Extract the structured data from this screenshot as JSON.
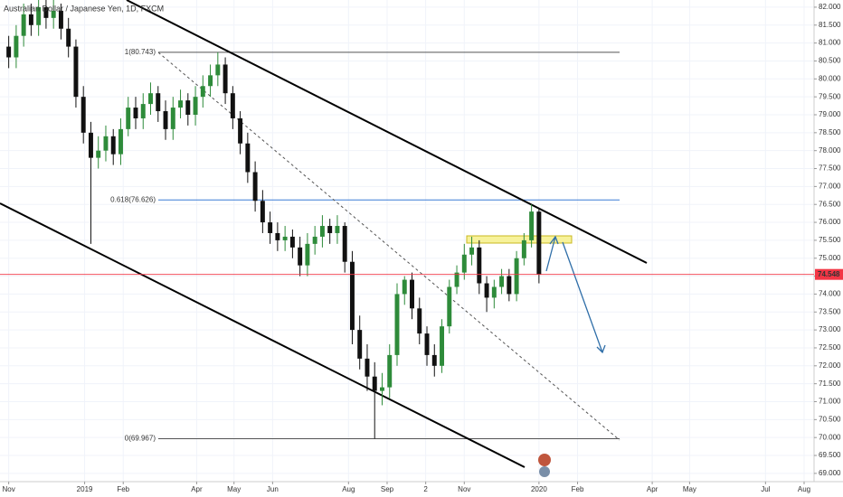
{
  "chart_data": {
    "type": "candlestick",
    "title": "Australian Dollar / Japanese Yen, 1D, FXCM",
    "up_color": "#2e8b3a",
    "down_color": "#111111",
    "x": [
      0,
      6,
      12,
      18,
      24,
      30,
      36,
      42,
      48,
      54,
      60,
      66,
      72,
      78,
      84,
      90,
      96,
      102,
      108,
      114,
      120,
      126,
      132,
      138,
      144,
      150,
      156,
      162,
      168,
      174,
      180,
      186,
      192,
      198,
      204,
      210,
      216,
      222,
      228,
      234,
      240,
      246,
      252,
      258,
      264,
      270,
      276,
      282,
      288,
      294,
      300,
      306,
      312,
      318,
      324,
      330,
      336,
      342,
      348,
      354,
      360,
      366,
      372,
      378,
      384,
      390,
      396,
      402,
      408,
      414,
      420,
      426
    ],
    "open": [
      80.9,
      80.6,
      81.2,
      81.8,
      81.5,
      82.0,
      81.7,
      81.9,
      81.4,
      80.9,
      79.5,
      78.5,
      77.8,
      78.0,
      78.4,
      77.9,
      78.6,
      79.2,
      78.9,
      79.3,
      79.6,
      79.1,
      78.6,
      79.2,
      79.4,
      79.0,
      79.5,
      79.8,
      80.1,
      80.4,
      79.6,
      78.9,
      78.2,
      77.4,
      76.6,
      76.0,
      75.7,
      75.5,
      75.6,
      75.3,
      74.8,
      75.4,
      75.6,
      75.9,
      75.7,
      75.9,
      74.9,
      73.0,
      72.2,
      71.7,
      71.3,
      71.4,
      72.3,
      74.0,
      74.4,
      73.6,
      72.9,
      72.3,
      72.0,
      73.1,
      74.2,
      74.6,
      75.1,
      75.3,
      74.3,
      73.9,
      74.2,
      74.5,
      74.0,
      75.0,
      75.5,
      76.3
    ],
    "high": [
      81.2,
      81.5,
      82.1,
      82.1,
      82.3,
      82.3,
      82.2,
      82.1,
      81.7,
      81.1,
      79.8,
      78.8,
      78.4,
      78.7,
      78.6,
      78.9,
      79.5,
      79.5,
      79.6,
      79.9,
      79.8,
      79.4,
      79.5,
      79.7,
      79.6,
      79.8,
      80.1,
      80.4,
      80.743,
      80.6,
      79.8,
      79.1,
      78.5,
      77.7,
      76.9,
      76.3,
      76.0,
      75.9,
      75.8,
      75.6,
      75.7,
      75.9,
      76.2,
      76.1,
      76.2,
      76.0,
      75.2,
      73.4,
      72.6,
      72.1,
      71.8,
      72.6,
      74.3,
      74.5,
      74.6,
      73.9,
      73.1,
      72.6,
      73.3,
      74.4,
      74.8,
      75.4,
      75.6,
      75.5,
      74.5,
      74.4,
      74.7,
      74.7,
      75.2,
      75.7,
      76.5,
      76.4
    ],
    "low": [
      80.3,
      80.3,
      80.9,
      81.2,
      81.2,
      81.4,
      81.4,
      81.1,
      80.6,
      79.2,
      78.2,
      75.4,
      77.5,
      77.7,
      77.6,
      77.6,
      78.4,
      78.6,
      78.6,
      79.0,
      78.8,
      78.3,
      78.3,
      78.9,
      78.7,
      78.7,
      79.2,
      79.5,
      79.8,
      79.3,
      78.6,
      77.9,
      77.1,
      76.3,
      75.7,
      75.4,
      75.2,
      75.2,
      75.0,
      74.5,
      74.5,
      75.1,
      75.3,
      75.4,
      75.4,
      74.6,
      72.6,
      71.9,
      71.3,
      69.967,
      70.9,
      71.1,
      72.0,
      73.7,
      73.3,
      72.6,
      72.0,
      71.7,
      71.8,
      72.9,
      74.0,
      74.4,
      74.8,
      74.0,
      73.5,
      73.6,
      74.0,
      73.8,
      73.8,
      74.8,
      75.3,
      74.3
    ],
    "close": [
      80.6,
      81.2,
      81.8,
      81.5,
      82.0,
      81.7,
      81.9,
      81.4,
      80.9,
      79.5,
      78.5,
      77.8,
      78.0,
      78.4,
      77.9,
      78.6,
      79.2,
      78.9,
      79.3,
      79.6,
      79.1,
      78.6,
      79.2,
      79.4,
      79.0,
      79.5,
      79.8,
      80.1,
      80.4,
      79.6,
      78.9,
      78.2,
      77.4,
      76.6,
      76.0,
      75.7,
      75.5,
      75.6,
      75.3,
      74.8,
      75.4,
      75.6,
      75.9,
      75.7,
      75.9,
      74.9,
      73.0,
      72.2,
      71.7,
      71.3,
      71.4,
      72.3,
      74.0,
      74.4,
      73.6,
      72.9,
      72.3,
      72.0,
      73.1,
      74.2,
      74.6,
      75.1,
      75.3,
      74.3,
      73.9,
      74.2,
      74.5,
      74.0,
      75.0,
      75.5,
      76.3,
      74.55
    ],
    "xlim": [
      -7,
      647
    ],
    "xticks": [
      {
        "value": 0,
        "label": "Nov"
      },
      {
        "value": 61,
        "label": "2019"
      },
      {
        "value": 92,
        "label": "Feb"
      },
      {
        "value": 151,
        "label": "Apr"
      },
      {
        "value": 181,
        "label": "May"
      },
      {
        "value": 212,
        "label": "Jun"
      },
      {
        "value": 273,
        "label": "Aug"
      },
      {
        "value": 304,
        "label": "Sep"
      },
      {
        "value": 335,
        "label": "2"
      },
      {
        "value": 366,
        "label": "Nov"
      },
      {
        "value": 426,
        "label": "2020"
      },
      {
        "value": 457,
        "label": "Feb"
      },
      {
        "value": 517,
        "label": "Apr"
      },
      {
        "value": 547,
        "label": "May"
      },
      {
        "value": 608,
        "label": "Jul"
      },
      {
        "value": 639,
        "label": "Aug"
      }
    ],
    "ylim": [
      68.77,
      82.2
    ],
    "yticks": [
      {
        "value": 69,
        "label": "69.000"
      },
      {
        "value": 69.5,
        "label": "69.500"
      },
      {
        "value": 70,
        "label": "70.000"
      },
      {
        "value": 70.5,
        "label": "70.500"
      },
      {
        "value": 71,
        "label": "71.000"
      },
      {
        "value": 71.5,
        "label": "71.500"
      },
      {
        "value": 72,
        "label": "72.000"
      },
      {
        "value": 72.5,
        "label": "72.500"
      },
      {
        "value": 73,
        "label": "73.000"
      },
      {
        "value": 73.5,
        "label": "73.500"
      },
      {
        "value": 74,
        "label": "74.000"
      },
      {
        "value": 74.5,
        "label": "74.500"
      },
      {
        "value": 75,
        "label": "75.000"
      },
      {
        "value": 75.5,
        "label": "75.500"
      },
      {
        "value": 76,
        "label": "76.000"
      },
      {
        "value": 76.5,
        "label": "76.500"
      },
      {
        "value": 77,
        "label": "77.000"
      },
      {
        "value": 77.5,
        "label": "77.500"
      },
      {
        "value": 78,
        "label": "78.000"
      },
      {
        "value": 78.5,
        "label": "78.500"
      },
      {
        "value": 79,
        "label": "79.000"
      },
      {
        "value": 79.5,
        "label": "79.500"
      },
      {
        "value": 80,
        "label": "80.000"
      },
      {
        "value": 80.5,
        "label": "80.500"
      },
      {
        "value": 81,
        "label": "81.000"
      },
      {
        "value": 81.5,
        "label": "81.500"
      },
      {
        "value": 82,
        "label": "82.000"
      }
    ],
    "grid": true,
    "fib_levels": [
      {
        "value": 80.743,
        "label": "1(80.743)",
        "color": "#555555"
      },
      {
        "value": 76.626,
        "label": "0.618(76.626)",
        "color": "#3a7bd5"
      },
      {
        "value": 69.967,
        "label": "0(69.967)",
        "color": "#555555"
      }
    ],
    "price_line": {
      "value": 74.548,
      "label": "74.548",
      "color": "#f23645"
    }
  }
}
